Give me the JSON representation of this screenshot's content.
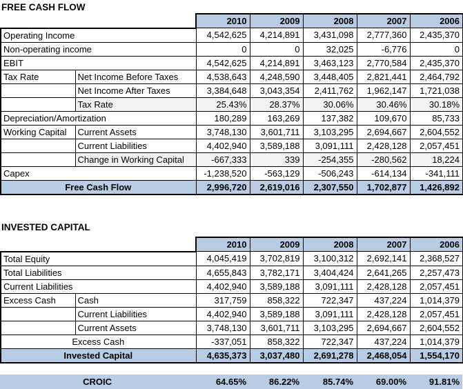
{
  "colors": {
    "header_fill": "#b8cce4",
    "subtotal_row_fill": "#f2f2f2",
    "border": "#000000",
    "text": "#000000"
  },
  "croic": {
    "label": "CROIC",
    "values": [
      "64.65%",
      "86.22%",
      "85.74%",
      "69.00%",
      "91.81%"
    ]
  },
  "sections": [
    {
      "title": "FREE CASH FLOW",
      "years": [
        "2010",
        "2009",
        "2008",
        "2007",
        "2006"
      ],
      "rows": [
        {
          "label": "Operating Income",
          "span": true,
          "values": [
            "4,542,625",
            "4,214,891",
            "3,431,098",
            "2,777,360",
            "2,435,370"
          ]
        },
        {
          "label": "Non-operating income",
          "span": true,
          "values": [
            "0",
            "0",
            "32,025",
            "-6,776",
            "0"
          ]
        },
        {
          "label": "EBIT",
          "span": true,
          "values": [
            "4,542,625",
            "4,214,891",
            "3,463,123",
            "2,770,584",
            "2,435,370"
          ]
        },
        {
          "group": "Tax Rate",
          "label": "Net Income Before Taxes",
          "values": [
            "4,538,643",
            "4,248,590",
            "3,448,405",
            "2,821,441",
            "2,464,792"
          ]
        },
        {
          "group": "",
          "label": "Net Income After Taxes",
          "values": [
            "3,384,648",
            "3,043,354",
            "2,411,762",
            "1,962,147",
            "1,721,038"
          ]
        },
        {
          "group": "",
          "label": "Tax Rate",
          "gray": true,
          "values": [
            "25.43%",
            "28.37%",
            "30.06%",
            "30.46%",
            "30.18%"
          ]
        },
        {
          "label": "Depreciation/Amortization",
          "span": true,
          "values": [
            "180,289",
            "163,269",
            "137,382",
            "109,670",
            "85,733"
          ]
        },
        {
          "group": "Working Capital",
          "label": "Current Assets",
          "values": [
            "3,748,130",
            "3,601,711",
            "3,103,295",
            "2,694,667",
            "2,604,552"
          ]
        },
        {
          "group": "",
          "label": "Current Liabilities",
          "values": [
            "4,402,940",
            "3,589,188",
            "3,091,111",
            "2,428,128",
            "2,057,451"
          ]
        },
        {
          "group": "",
          "label": "Change in Working Capital",
          "gray": true,
          "values": [
            "-667,333",
            "339",
            "-254,355",
            "-280,562",
            "18,224"
          ]
        },
        {
          "label": "Capex",
          "span": true,
          "values": [
            "-1,238,520",
            "-563,129",
            "-506,243",
            "-614,134",
            "-341,111"
          ]
        }
      ],
      "total": {
        "label": "Free Cash Flow",
        "values": [
          "2,996,720",
          "2,619,016",
          "2,307,550",
          "1,702,877",
          "1,426,892"
        ]
      }
    },
    {
      "title": "INVESTED CAPITAL",
      "years": [
        "2010",
        "2009",
        "2008",
        "2007",
        "2006"
      ],
      "rows": [
        {
          "label": "Total Equity",
          "span": true,
          "values": [
            "4,045,419",
            "3,702,819",
            "3,100,312",
            "2,692,141",
            "2,368,527"
          ]
        },
        {
          "label": "Total Liabilities",
          "span": true,
          "values": [
            "4,655,843",
            "3,782,171",
            "3,404,424",
            "2,641,265",
            "2,257,473"
          ]
        },
        {
          "label": "Current Liabilities",
          "span": true,
          "values": [
            "4,402,940",
            "3,589,188",
            "3,091,111",
            "2,428,128",
            "2,057,451"
          ]
        },
        {
          "group": "Excess Cash",
          "label": "Cash",
          "values": [
            "317,759",
            "858,322",
            "722,347",
            "437,224",
            "1,014,379"
          ]
        },
        {
          "group": "",
          "label": "Current Liabilities",
          "values": [
            "4,402,940",
            "3,589,188",
            "3,091,111",
            "2,428,128",
            "2,057,451"
          ]
        },
        {
          "group": "",
          "label": "Current Assets",
          "values": [
            "3,748,130",
            "3,601,711",
            "3,103,295",
            "2,694,667",
            "2,604,552"
          ]
        },
        {
          "label": "Excess Cash",
          "span": true,
          "center": true,
          "values": [
            "-337,051",
            "858,322",
            "722,347",
            "437,224",
            "1,014,379"
          ]
        }
      ],
      "total": {
        "label": "Invested Capital",
        "values": [
          "4,635,373",
          "3,037,480",
          "2,691,278",
          "2,468,054",
          "1,554,170"
        ]
      }
    }
  ]
}
